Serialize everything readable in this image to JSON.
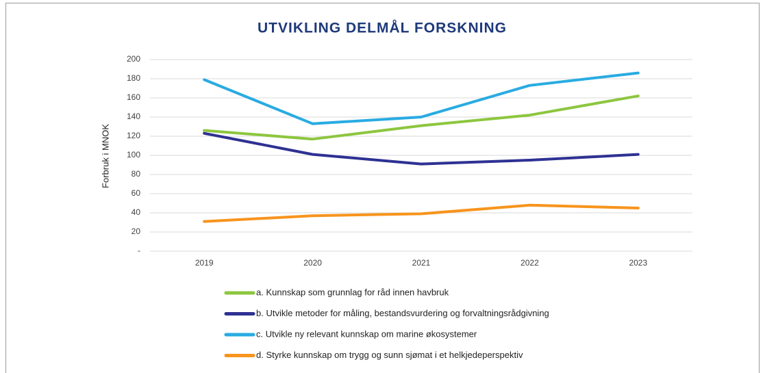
{
  "chart_data": {
    "type": "line",
    "title": "UTVIKLING DELMÅL FORSKNING",
    "y_label": "Forbruk i MNOK",
    "categories": [
      "2019",
      "2020",
      "2021",
      "2022",
      "2023"
    ],
    "series": [
      {
        "name": "a. Kunnskap som grunnlag for råd innen havbruk",
        "color": "#8dc63f",
        "values": [
          126,
          117,
          131,
          142,
          162
        ]
      },
      {
        "name": "b. Utvikle metoder for måling, bestandsvurdering og forvaltningsrådgivning",
        "color": "#2e3192",
        "values": [
          123,
          101,
          91,
          95,
          101
        ]
      },
      {
        "name": "c. Utvikle ny relevant kunnskap om marine økosystemer",
        "color": "#29abe2",
        "values": [
          179,
          133,
          140,
          173,
          186
        ]
      },
      {
        "name": "d. Styrke kunnskap om trygg og sunn sjømat i et helkjedeperspektiv",
        "color": "#f7941d",
        "values": [
          31,
          37,
          39,
          48,
          45
        ]
      }
    ],
    "ylim": [
      0,
      200
    ],
    "yticks": [
      {
        "value": 0,
        "label": "-"
      },
      20,
      40,
      60,
      80,
      100,
      120,
      140,
      160,
      180,
      200
    ],
    "grid": true
  }
}
